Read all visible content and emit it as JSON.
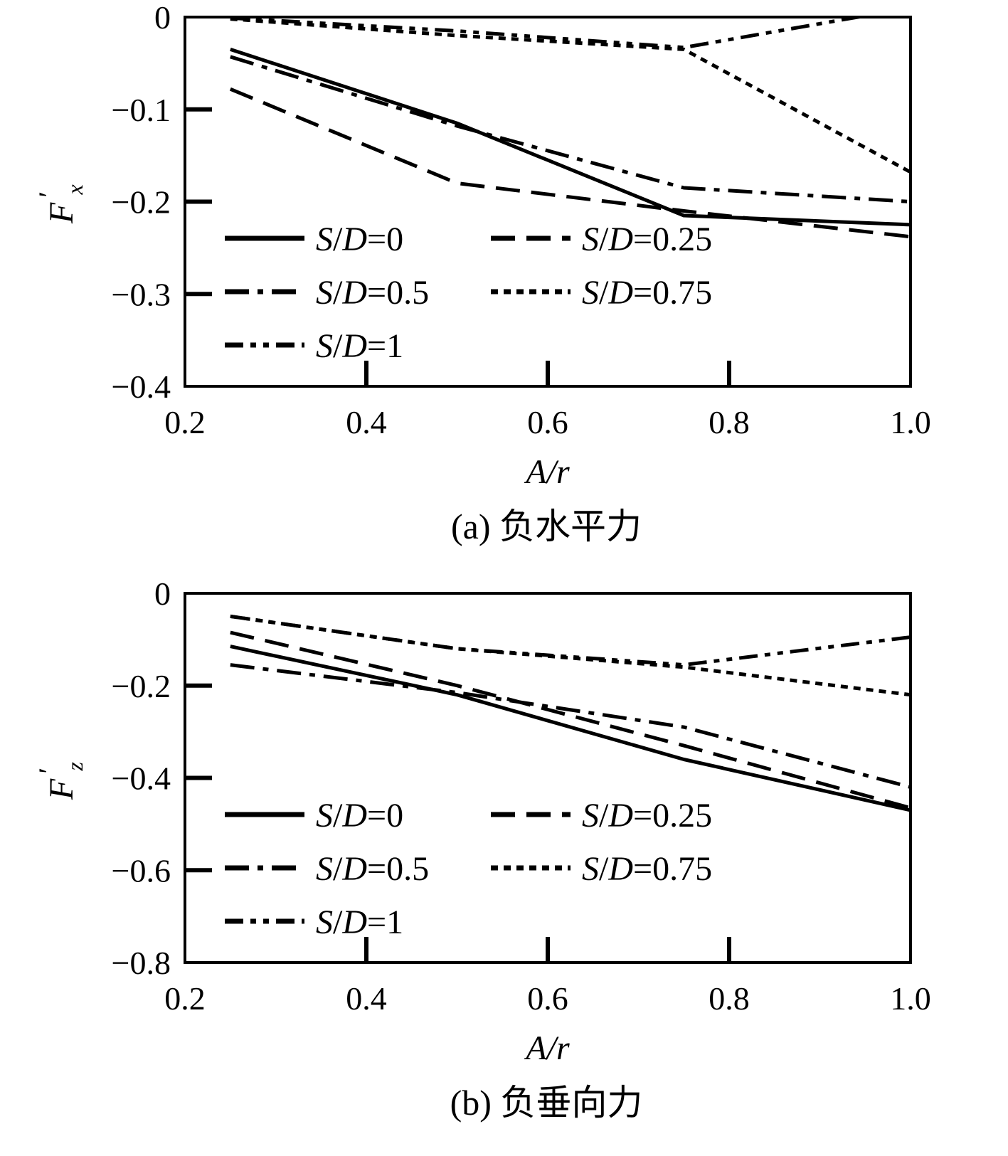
{
  "chart_data": [
    {
      "type": "line",
      "caption": "(a) 负水平力",
      "xlabel": "A/r",
      "ylabel_main": "F",
      "ylabel_sub": "x",
      "ylabel_prime": "′",
      "xlim": [
        0.2,
        1.0
      ],
      "ylim": [
        -0.4,
        0
      ],
      "xticks": [
        0.2,
        0.4,
        0.6,
        0.8,
        1.0
      ],
      "xtick_labels": [
        "0.2",
        "0.4",
        "0.6",
        "0.8",
        "1.0"
      ],
      "yticks": [
        0,
        -0.1,
        -0.2,
        -0.3,
        -0.4
      ],
      "ytick_labels": [
        "0",
        "−0.1",
        "−0.2",
        "−0.3",
        "−0.4"
      ],
      "x": [
        0.25,
        0.5,
        0.75,
        1.0
      ],
      "legend_position": "lower-left",
      "series": [
        {
          "name": "S/D=0",
          "name_parts": [
            "S",
            "/",
            "D",
            "=0"
          ],
          "style": "solid",
          "values": [
            -0.035,
            -0.115,
            -0.215,
            -0.225
          ]
        },
        {
          "name": "S/D=0.25",
          "name_parts": [
            "S",
            "/",
            "D",
            "=0.25"
          ],
          "style": "dash",
          "values": [
            -0.078,
            -0.18,
            -0.21,
            -0.238
          ]
        },
        {
          "name": "S/D=0.5",
          "name_parts": [
            "S",
            "/",
            "D",
            "=0.5"
          ],
          "style": "dashdot",
          "values": [
            -0.043,
            -0.118,
            -0.185,
            -0.2
          ]
        },
        {
          "name": "S/D=0.75",
          "name_parts": [
            "S",
            "/",
            "D",
            "=0.75"
          ],
          "style": "dotted",
          "values": [
            -0.002,
            -0.02,
            -0.035,
            -0.168
          ]
        },
        {
          "name": "S/D=1",
          "name_parts": [
            "S",
            "/",
            "D",
            "=1"
          ],
          "style": "dashdotdot",
          "values": [
            -0.001,
            -0.015,
            -0.033,
            0.01
          ]
        }
      ]
    },
    {
      "type": "line",
      "caption": "(b) 负垂向力",
      "xlabel": "A/r",
      "ylabel_main": "F",
      "ylabel_sub": "z",
      "ylabel_prime": "′",
      "xlim": [
        0.2,
        1.0
      ],
      "ylim": [
        -0.8,
        0
      ],
      "xticks": [
        0.2,
        0.4,
        0.6,
        0.8,
        1.0
      ],
      "xtick_labels": [
        "0.2",
        "0.4",
        "0.6",
        "0.8",
        "1.0"
      ],
      "yticks": [
        0,
        -0.2,
        -0.4,
        -0.6,
        -0.8
      ],
      "ytick_labels": [
        "0",
        "−0.2",
        "−0.4",
        "−0.6",
        "−0.8"
      ],
      "x": [
        0.25,
        0.5,
        0.75,
        1.0
      ],
      "legend_position": "lower-left",
      "series": [
        {
          "name": "S/D=0",
          "name_parts": [
            "S",
            "/",
            "D",
            "=0"
          ],
          "style": "solid",
          "values": [
            -0.115,
            -0.22,
            -0.36,
            -0.47
          ]
        },
        {
          "name": "S/D=0.25",
          "name_parts": [
            "S",
            "/",
            "D",
            "=0.25"
          ],
          "style": "dash",
          "values": [
            -0.085,
            -0.2,
            -0.33,
            -0.465
          ]
        },
        {
          "name": "S/D=0.5",
          "name_parts": [
            "S",
            "/",
            "D",
            "=0.5"
          ],
          "style": "dashdot",
          "values": [
            -0.155,
            -0.215,
            -0.29,
            -0.42
          ]
        },
        {
          "name": "S/D=0.75",
          "name_parts": [
            "S",
            "/",
            "D",
            "=0.75"
          ],
          "style": "dotted",
          "values": [
            -0.05,
            -0.12,
            -0.16,
            -0.22
          ]
        },
        {
          "name": "S/D=1",
          "name_parts": [
            "S",
            "/",
            "D",
            "=1"
          ],
          "style": "dashdotdot",
          "values": [
            -0.05,
            -0.12,
            -0.155,
            -0.095
          ]
        }
      ]
    }
  ]
}
